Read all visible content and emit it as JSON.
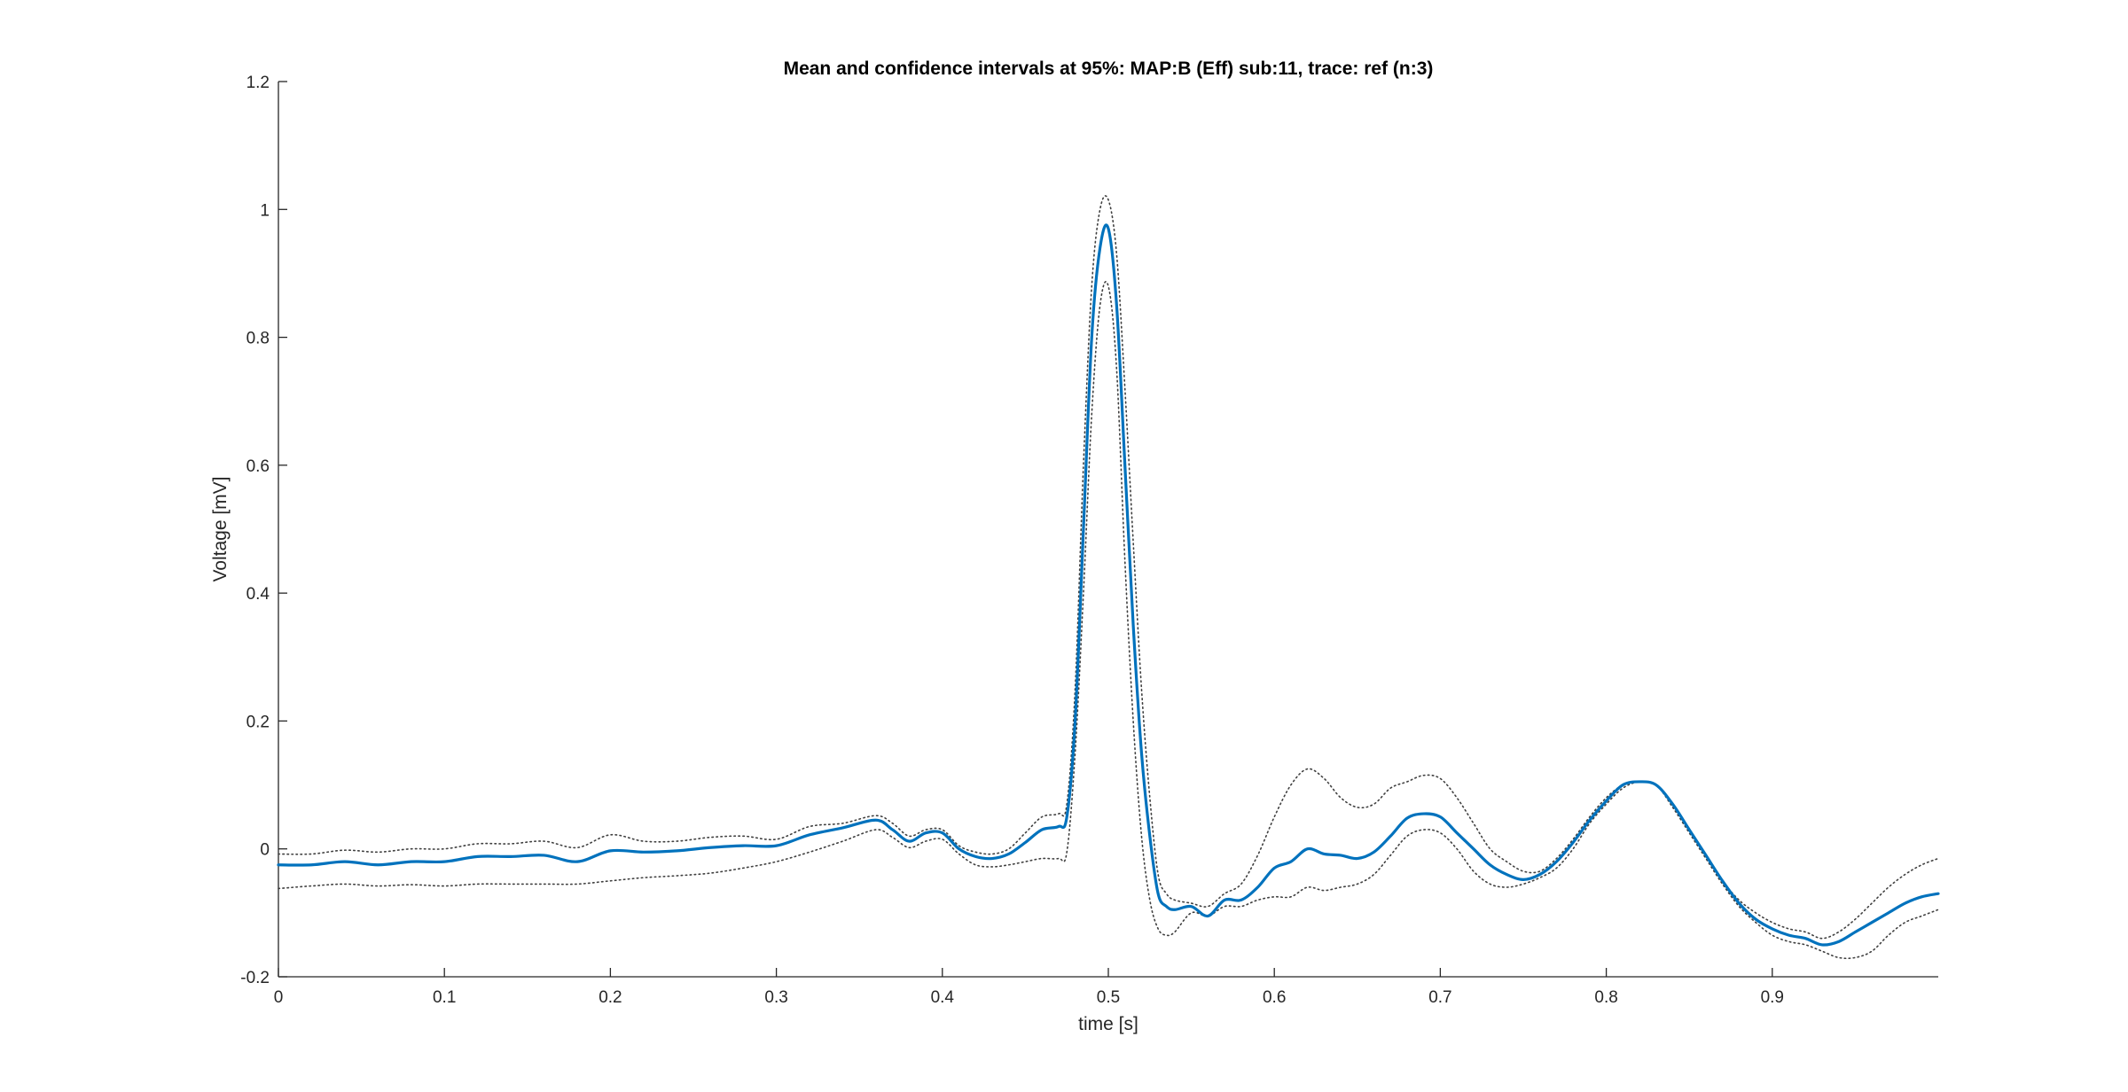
{
  "chart_data": {
    "type": "line",
    "title": "Mean and confidence intervals at 95%: MAP:B (Eff) sub:11, trace: ref (n:3)",
    "xlabel": "time [s]",
    "ylabel": "Voltage [mV]",
    "xlim": [
      0,
      1.0
    ],
    "ylim": [
      -0.2,
      1.2
    ],
    "xticks": [
      0,
      0.1,
      0.2,
      0.3,
      0.4,
      0.5,
      0.6,
      0.7,
      0.8,
      0.9
    ],
    "xtick_labels": [
      "0",
      "0.1",
      "0.2",
      "0.3",
      "0.4",
      "0.5",
      "0.6",
      "0.7",
      "0.8",
      "0.9"
    ],
    "yticks": [
      -0.2,
      0,
      0.2,
      0.4,
      0.6,
      0.8,
      1.0,
      1.2
    ],
    "ytick_labels": [
      "-0.2",
      "0",
      "0.2",
      "0.4",
      "0.6",
      "0.8",
      "1",
      "1.2"
    ],
    "grid": false,
    "legend": "none",
    "colors": {
      "mean": "#0072BD",
      "ci": "#404040",
      "axis": "#262626"
    },
    "series": [
      {
        "role": "mean",
        "style": "solid",
        "x": [
          0,
          0.02,
          0.04,
          0.06,
          0.08,
          0.1,
          0.12,
          0.14,
          0.16,
          0.18,
          0.2,
          0.22,
          0.24,
          0.26,
          0.28,
          0.3,
          0.32,
          0.34,
          0.36,
          0.37,
          0.38,
          0.39,
          0.4,
          0.41,
          0.42,
          0.43,
          0.44,
          0.45,
          0.46,
          0.47,
          0.475,
          0.48,
          0.485,
          0.49,
          0.495,
          0.5,
          0.505,
          0.51,
          0.515,
          0.52,
          0.525,
          0.53,
          0.535,
          0.54,
          0.55,
          0.56,
          0.57,
          0.58,
          0.59,
          0.6,
          0.61,
          0.62,
          0.63,
          0.64,
          0.65,
          0.66,
          0.67,
          0.68,
          0.69,
          0.7,
          0.71,
          0.72,
          0.73,
          0.74,
          0.75,
          0.76,
          0.77,
          0.78,
          0.79,
          0.8,
          0.81,
          0.82,
          0.83,
          0.84,
          0.85,
          0.86,
          0.87,
          0.88,
          0.89,
          0.9,
          0.91,
          0.92,
          0.93,
          0.94,
          0.95,
          0.96,
          0.97,
          0.98,
          0.99,
          1.0
        ],
        "y": [
          -0.025,
          -0.025,
          -0.02,
          -0.025,
          -0.02,
          -0.02,
          -0.012,
          -0.012,
          -0.01,
          -0.02,
          -0.003,
          -0.005,
          -0.003,
          0.002,
          0.005,
          0.005,
          0.022,
          0.033,
          0.045,
          0.03,
          0.012,
          0.025,
          0.025,
          0.0,
          -0.012,
          -0.015,
          -0.008,
          0.01,
          0.03,
          0.035,
          0.05,
          0.2,
          0.5,
          0.8,
          0.94,
          0.97,
          0.85,
          0.6,
          0.35,
          0.15,
          0.02,
          -0.07,
          -0.09,
          -0.095,
          -0.09,
          -0.105,
          -0.08,
          -0.08,
          -0.06,
          -0.03,
          -0.02,
          0.0,
          -0.008,
          -0.01,
          -0.015,
          -0.005,
          0.02,
          0.048,
          0.055,
          0.05,
          0.025,
          0.0,
          -0.025,
          -0.04,
          -0.048,
          -0.04,
          -0.02,
          0.01,
          0.045,
          0.075,
          0.1,
          0.105,
          0.1,
          0.07,
          0.03,
          -0.01,
          -0.05,
          -0.085,
          -0.11,
          -0.125,
          -0.135,
          -0.14,
          -0.15,
          -0.145,
          -0.13,
          -0.115,
          -0.1,
          -0.085,
          -0.075,
          -0.07
        ]
      },
      {
        "role": "upper-ci",
        "style": "dotted",
        "x": [
          0,
          0.02,
          0.04,
          0.06,
          0.08,
          0.1,
          0.12,
          0.14,
          0.16,
          0.18,
          0.2,
          0.22,
          0.24,
          0.26,
          0.28,
          0.3,
          0.32,
          0.34,
          0.36,
          0.37,
          0.38,
          0.39,
          0.4,
          0.41,
          0.42,
          0.43,
          0.44,
          0.45,
          0.46,
          0.47,
          0.475,
          0.48,
          0.485,
          0.49,
          0.495,
          0.5,
          0.505,
          0.51,
          0.515,
          0.52,
          0.525,
          0.53,
          0.535,
          0.54,
          0.55,
          0.56,
          0.57,
          0.58,
          0.59,
          0.6,
          0.61,
          0.62,
          0.63,
          0.64,
          0.65,
          0.66,
          0.67,
          0.68,
          0.69,
          0.7,
          0.71,
          0.72,
          0.73,
          0.74,
          0.75,
          0.76,
          0.77,
          0.78,
          0.79,
          0.8,
          0.81,
          0.82,
          0.83,
          0.84,
          0.85,
          0.86,
          0.87,
          0.88,
          0.89,
          0.9,
          0.91,
          0.92,
          0.93,
          0.94,
          0.95,
          0.96,
          0.97,
          0.98,
          0.99,
          1.0
        ],
        "y": [
          -0.008,
          -0.008,
          -0.002,
          -0.005,
          0.0,
          0.0,
          0.008,
          0.008,
          0.012,
          0.002,
          0.022,
          0.012,
          0.012,
          0.018,
          0.02,
          0.015,
          0.035,
          0.04,
          0.052,
          0.04,
          0.02,
          0.03,
          0.03,
          0.005,
          -0.005,
          -0.008,
          0.0,
          0.025,
          0.05,
          0.055,
          0.07,
          0.25,
          0.6,
          0.88,
          1.0,
          1.015,
          0.93,
          0.72,
          0.48,
          0.25,
          0.08,
          -0.04,
          -0.07,
          -0.08,
          -0.085,
          -0.09,
          -0.07,
          -0.055,
          -0.01,
          0.05,
          0.1,
          0.125,
          0.11,
          0.08,
          0.065,
          0.07,
          0.095,
          0.105,
          0.115,
          0.11,
          0.08,
          0.04,
          0.0,
          -0.02,
          -0.035,
          -0.035,
          -0.015,
          0.015,
          0.05,
          0.08,
          0.1,
          0.105,
          0.1,
          0.07,
          0.03,
          -0.01,
          -0.05,
          -0.08,
          -0.1,
          -0.115,
          -0.125,
          -0.13,
          -0.14,
          -0.13,
          -0.11,
          -0.085,
          -0.06,
          -0.04,
          -0.025,
          -0.015
        ]
      },
      {
        "role": "lower-ci",
        "style": "dotted",
        "x": [
          0,
          0.02,
          0.04,
          0.06,
          0.08,
          0.1,
          0.12,
          0.14,
          0.16,
          0.18,
          0.2,
          0.22,
          0.24,
          0.26,
          0.28,
          0.3,
          0.32,
          0.34,
          0.36,
          0.37,
          0.38,
          0.39,
          0.4,
          0.41,
          0.42,
          0.43,
          0.44,
          0.45,
          0.46,
          0.47,
          0.475,
          0.48,
          0.485,
          0.49,
          0.495,
          0.5,
          0.505,
          0.51,
          0.515,
          0.52,
          0.525,
          0.53,
          0.535,
          0.54,
          0.55,
          0.56,
          0.57,
          0.58,
          0.59,
          0.6,
          0.61,
          0.62,
          0.63,
          0.64,
          0.65,
          0.66,
          0.67,
          0.68,
          0.69,
          0.7,
          0.71,
          0.72,
          0.73,
          0.74,
          0.75,
          0.76,
          0.77,
          0.78,
          0.79,
          0.8,
          0.81,
          0.82,
          0.83,
          0.84,
          0.85,
          0.86,
          0.87,
          0.88,
          0.89,
          0.9,
          0.91,
          0.92,
          0.93,
          0.94,
          0.95,
          0.96,
          0.97,
          0.98,
          0.99,
          1.0
        ],
        "y": [
          -0.062,
          -0.058,
          -0.055,
          -0.058,
          -0.056,
          -0.058,
          -0.055,
          -0.055,
          -0.055,
          -0.055,
          -0.05,
          -0.045,
          -0.042,
          -0.038,
          -0.03,
          -0.02,
          -0.005,
          0.012,
          0.03,
          0.018,
          0.002,
          0.012,
          0.015,
          -0.008,
          -0.025,
          -0.028,
          -0.025,
          -0.02,
          -0.015,
          -0.015,
          -0.005,
          0.15,
          0.4,
          0.68,
          0.85,
          0.88,
          0.75,
          0.45,
          0.2,
          0.02,
          -0.08,
          -0.125,
          -0.135,
          -0.13,
          -0.1,
          -0.105,
          -0.09,
          -0.09,
          -0.08,
          -0.075,
          -0.075,
          -0.06,
          -0.065,
          -0.06,
          -0.055,
          -0.04,
          -0.01,
          0.02,
          0.03,
          0.025,
          0.0,
          -0.035,
          -0.055,
          -0.06,
          -0.055,
          -0.045,
          -0.03,
          0.0,
          0.04,
          0.07,
          0.095,
          0.105,
          0.1,
          0.065,
          0.025,
          -0.015,
          -0.055,
          -0.09,
          -0.115,
          -0.135,
          -0.145,
          -0.15,
          -0.16,
          -0.17,
          -0.17,
          -0.16,
          -0.135,
          -0.115,
          -0.105,
          -0.095
        ]
      }
    ]
  }
}
